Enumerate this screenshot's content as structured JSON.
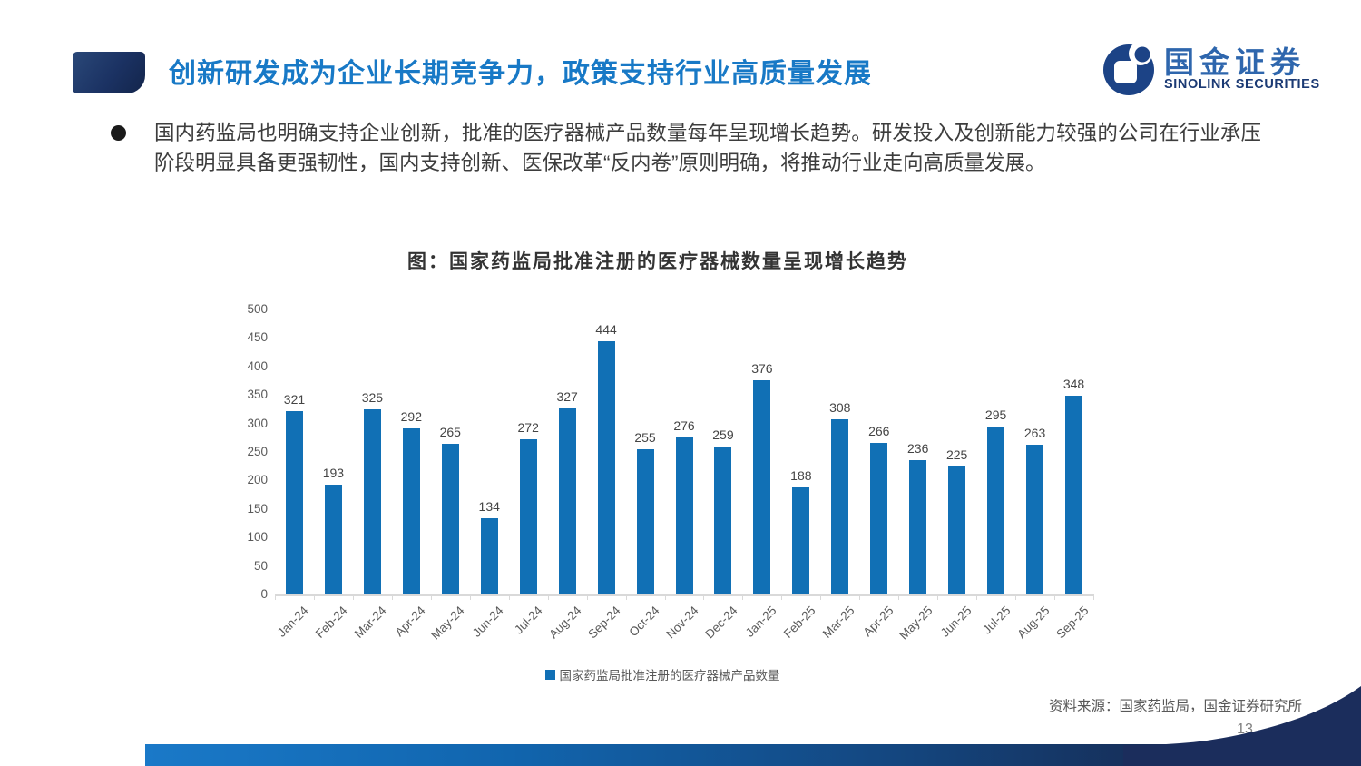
{
  "slide": {
    "header": {
      "title": "创新研发成为企业长期竞争力，政策支持行业高质量发展"
    },
    "logo": {
      "cn": "国金证券",
      "en": "SINOLINK SECURITIES"
    },
    "bullet": {
      "text": "国内药监局也明确支持企业创新，批准的医疗器械产品数量每年呈现增长趋势。研发投入及创新能力较强的公司在行业承压阶段明显具备更强韧性，国内支持创新、医保改革“反内卷”原则明确，将推动行业走向高质量发展。"
    },
    "footer": {
      "source": "资料来源：国家药监局，国金证券研究所",
      "page": "13"
    },
    "colors": {
      "accent_blue": "#1879C6",
      "bar_blue": "#1170B5",
      "navy": "#1B3263",
      "axis_gray": "#D9D9D9",
      "label_gray": "#595959"
    }
  },
  "chart_data": {
    "type": "bar",
    "title": "图：国家药监局批准注册的医疗器械数量呈现增长趋势",
    "categories": [
      "Jan-24",
      "Feb-24",
      "Mar-24",
      "Apr-24",
      "May-24",
      "Jun-24",
      "Jul-24",
      "Aug-24",
      "Sep-24",
      "Oct-24",
      "Nov-24",
      "Dec-24",
      "Jan-25",
      "Feb-25",
      "Mar-25",
      "Apr-25",
      "May-25",
      "Jun-25",
      "Jul-25",
      "Aug-25",
      "Sep-25"
    ],
    "values": [
      321,
      193,
      325,
      292,
      265,
      134,
      272,
      327,
      444,
      255,
      276,
      259,
      376,
      188,
      308,
      266,
      236,
      225,
      295,
      263,
      348
    ],
    "series_name": "国家药监局批准注册的医疗器械产品数量",
    "legend": [
      "国家药监局批准注册的医疗器械产品数量"
    ],
    "legend_position": "bottom",
    "xlabel": "",
    "ylabel": "",
    "ylim": [
      0,
      500
    ],
    "ytick_step": 50,
    "grid": false,
    "bar_color": "#1170B5"
  }
}
